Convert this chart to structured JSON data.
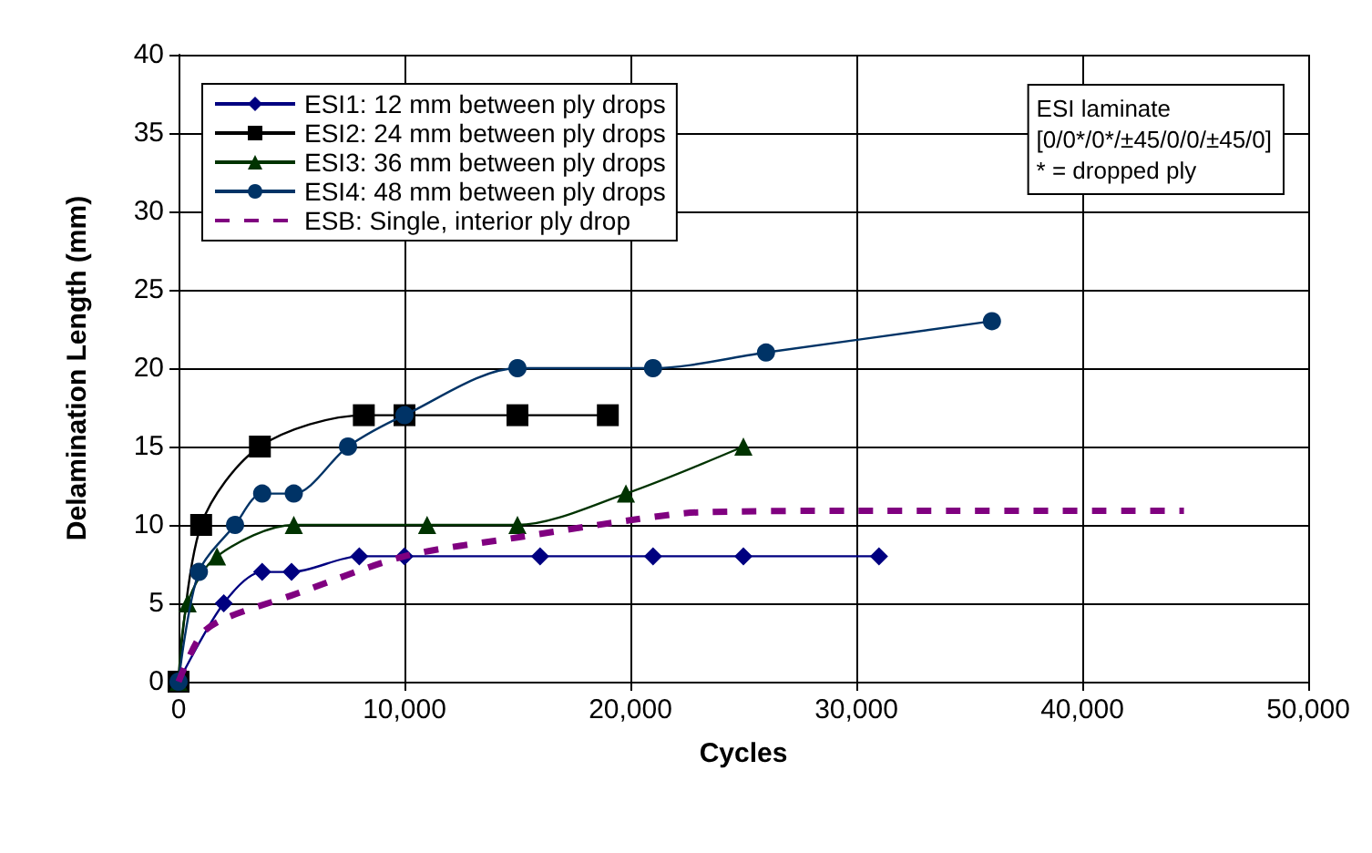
{
  "chart_data": {
    "type": "line",
    "xlabel": "Cycles",
    "ylabel": "Delamination Length (mm)",
    "xlim": [
      0,
      50000
    ],
    "xticks": [
      {
        "value": 0,
        "label": "0"
      },
      {
        "value": 10000,
        "label": "10,000"
      },
      {
        "value": 20000,
        "label": "20,000"
      },
      {
        "value": 30000,
        "label": "30,000"
      },
      {
        "value": 40000,
        "label": "40,000"
      },
      {
        "value": 50000,
        "label": "50,000"
      }
    ],
    "ylim": [
      0,
      40
    ],
    "yticks": [
      0,
      5,
      10,
      15,
      20,
      25,
      30,
      35,
      40
    ],
    "grid": true,
    "legend": "top left",
    "annotations": [
      "ESI laminate\n[0/0*/0*/±45/0/0/±45/0]\n* = dropped ply"
    ],
    "series": [
      {
        "name": "ESI1: 12 mm between ply drops",
        "color": "#000080",
        "marker": "diamond",
        "x": [
          0,
          2000,
          3700,
          5000,
          8000,
          10000,
          16000,
          21000,
          25000,
          31000
        ],
        "values": [
          0,
          5,
          7,
          7,
          8,
          8,
          8,
          8,
          8,
          8
        ]
      },
      {
        "name": "ESI2: 24 mm between ply drops",
        "color": "#000000",
        "marker": "square",
        "x": [
          0,
          1000,
          3600,
          8200,
          10000,
          15000,
          19000
        ],
        "values": [
          0,
          10,
          15,
          17,
          17,
          17,
          17
        ]
      },
      {
        "name": "ESI3: 36 mm between ply drops",
        "color": "#003300",
        "marker": "triangle",
        "x": [
          0,
          400,
          1700,
          5100,
          11000,
          15000,
          19800,
          25000
        ],
        "values": [
          0,
          5,
          8,
          10,
          10,
          10,
          12,
          15
        ]
      },
      {
        "name": "ESI4: 48 mm between ply drops",
        "color": "#003366",
        "marker": "circle",
        "x": [
          0,
          900,
          2500,
          3700,
          5100,
          7500,
          10000,
          15000,
          21000,
          26000,
          36000
        ],
        "values": [
          0,
          7,
          10,
          12,
          12,
          15,
          17,
          20,
          20,
          21,
          23
        ]
      },
      {
        "name": "ESB: Single, interior ply drop",
        "color": "#800080",
        "marker": "none",
        "line_style": "dashed",
        "x": [
          0,
          1000,
          2000,
          5000,
          10000,
          15000,
          20000,
          23000,
          30000,
          44500
        ],
        "values": [
          0,
          3,
          4,
          5.5,
          8,
          9.2,
          10.3,
          10.8,
          10.9,
          10.9
        ]
      }
    ]
  }
}
